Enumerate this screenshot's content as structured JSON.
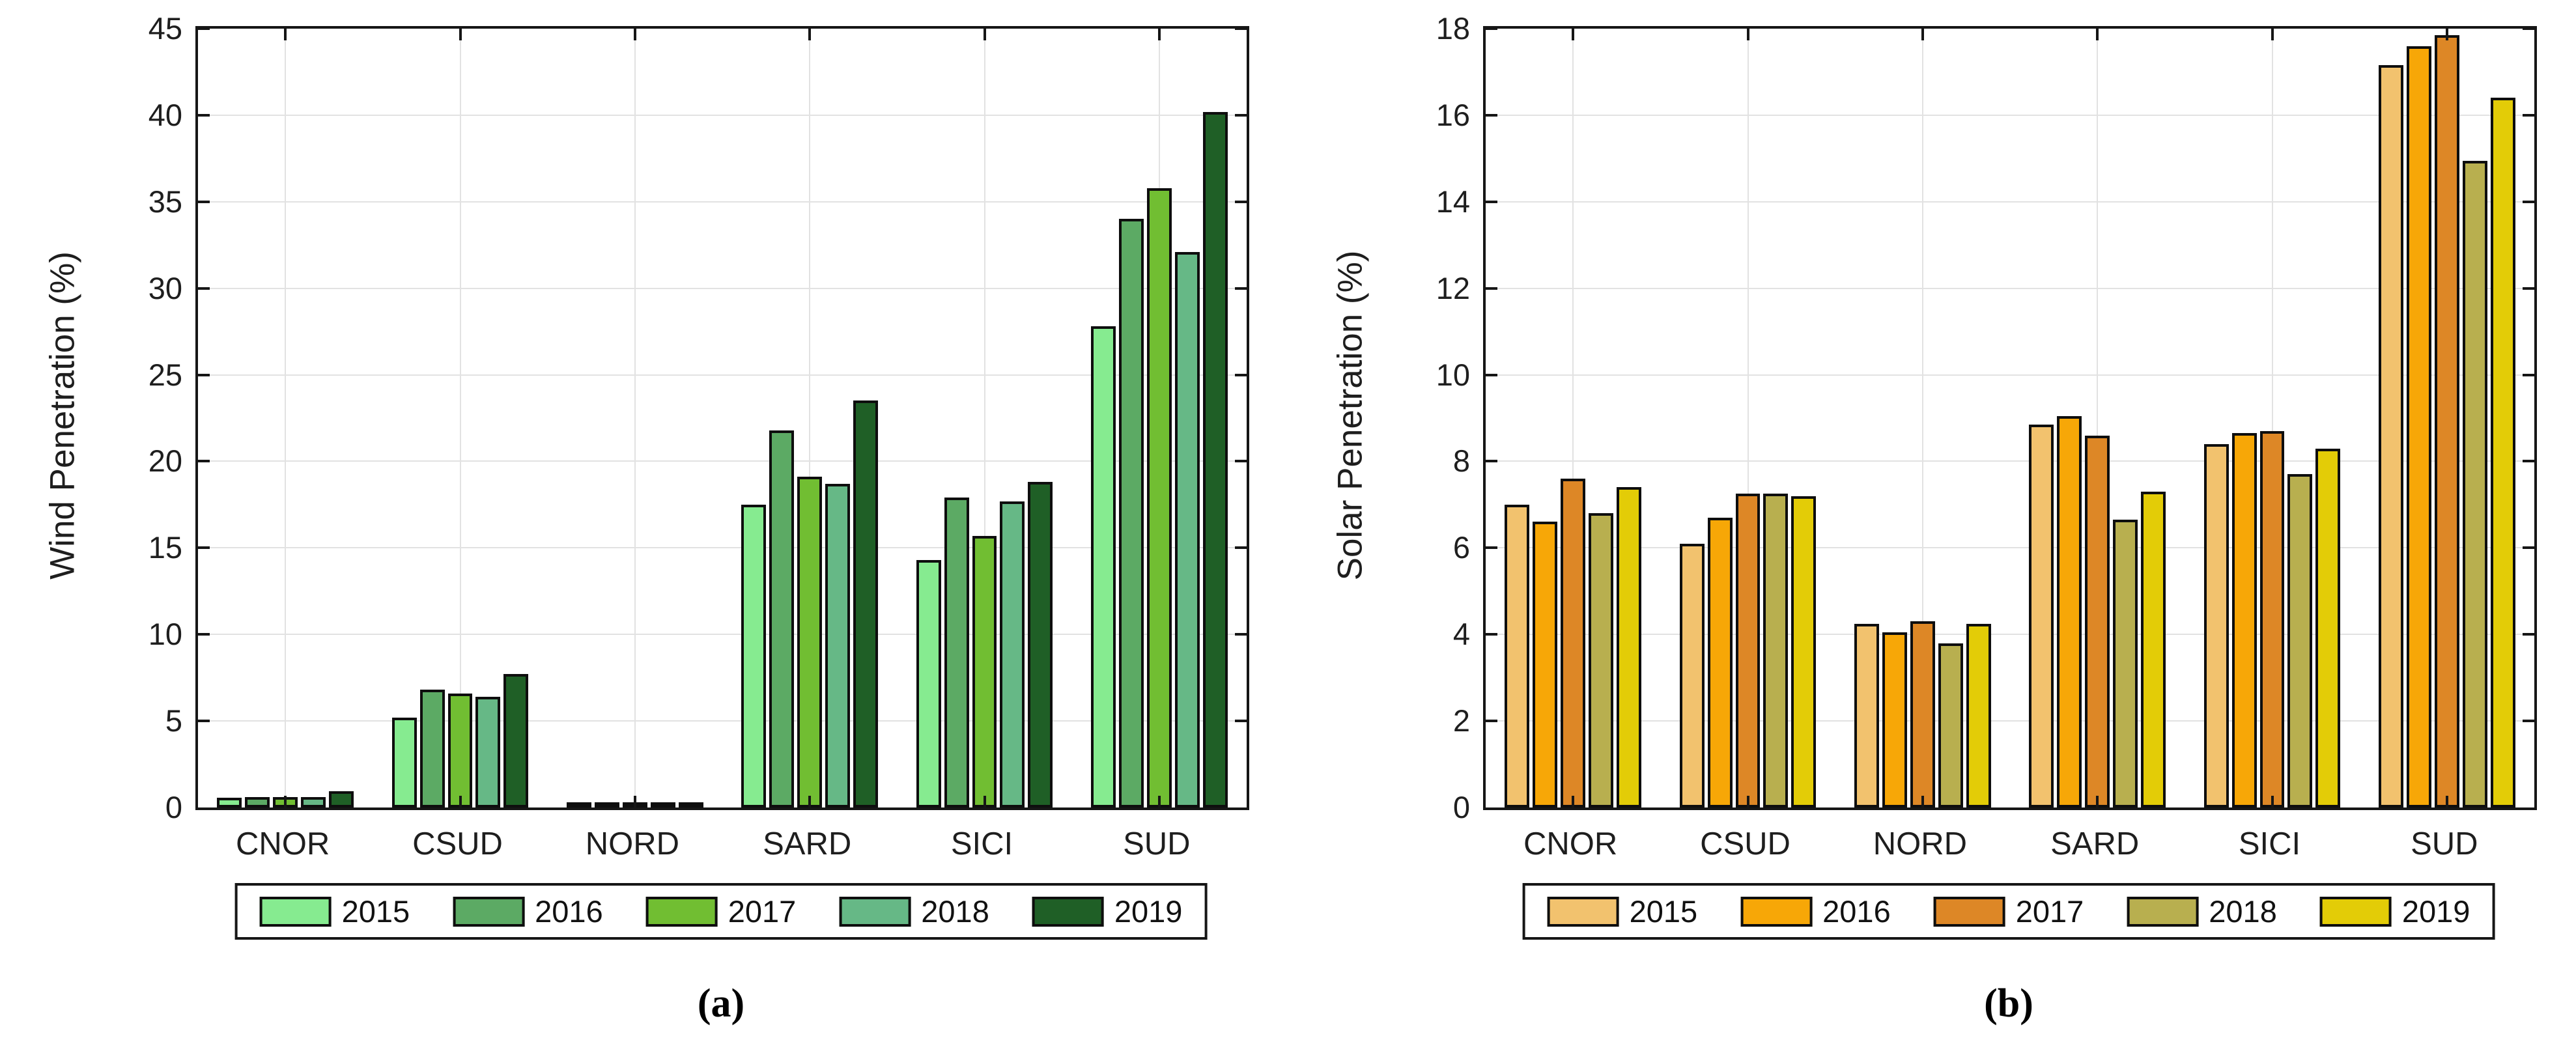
{
  "figure_colors": {
    "axis": "#161616",
    "grid": "#e2e2e2",
    "background": "#ffffff",
    "text": "#1e1e1e"
  },
  "chart_data": [
    {
      "type": "bar",
      "caption": "(a)",
      "ylabel": "Wind Penetration (%)",
      "xlabel": "",
      "categories": [
        "CNOR",
        "CSUD",
        "NORD",
        "SARD",
        "SICI",
        "SUD"
      ],
      "series": [
        {
          "name": "2015",
          "color": "#86EB90",
          "values": [
            0.55,
            5.2,
            0.1,
            17.5,
            14.3,
            27.8
          ]
        },
        {
          "name": "2016",
          "color": "#5CAA64",
          "values": [
            0.6,
            6.8,
            0.1,
            21.8,
            17.9,
            34.0
          ]
        },
        {
          "name": "2017",
          "color": "#71BE32",
          "values": [
            0.6,
            6.6,
            0.1,
            19.1,
            15.7,
            35.8
          ]
        },
        {
          "name": "2018",
          "color": "#66B886",
          "values": [
            0.6,
            6.4,
            0.1,
            18.7,
            17.7,
            32.1
          ]
        },
        {
          "name": "2019",
          "color": "#1F5F26",
          "values": [
            0.95,
            7.7,
            0.1,
            23.5,
            18.8,
            40.2
          ]
        }
      ],
      "ylim": [
        0,
        45
      ],
      "ytick_step": 5,
      "yticks": [
        0,
        5,
        10,
        15,
        20,
        25,
        30,
        35,
        40,
        45
      ],
      "grid": true,
      "legend_position": "bottom"
    },
    {
      "type": "bar",
      "caption": "(b)",
      "ylabel": "Solar Penetration (%)",
      "xlabel": "",
      "categories": [
        "CNOR",
        "CSUD",
        "NORD",
        "SARD",
        "SICI",
        "SUD"
      ],
      "series": [
        {
          "name": "2015",
          "color": "#F2C26E",
          "values": [
            7.0,
            6.1,
            4.25,
            8.85,
            8.4,
            17.15
          ]
        },
        {
          "name": "2016",
          "color": "#F7A707",
          "values": [
            6.6,
            6.7,
            4.05,
            9.05,
            8.65,
            17.6
          ]
        },
        {
          "name": "2017",
          "color": "#DD8726",
          "values": [
            7.6,
            7.25,
            4.3,
            8.6,
            8.7,
            17.85
          ]
        },
        {
          "name": "2018",
          "color": "#B8AF4F",
          "values": [
            6.8,
            7.25,
            3.8,
            6.65,
            7.7,
            14.95
          ]
        },
        {
          "name": "2019",
          "color": "#E3CC07",
          "values": [
            7.4,
            7.2,
            4.25,
            7.3,
            8.3,
            16.4
          ]
        }
      ],
      "ylim": [
        0,
        18
      ],
      "ytick_step": 2,
      "yticks": [
        0,
        2,
        4,
        6,
        8,
        10,
        12,
        14,
        16,
        18
      ],
      "grid": true,
      "legend_position": "bottom"
    }
  ]
}
